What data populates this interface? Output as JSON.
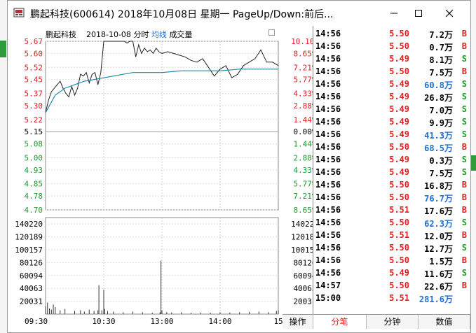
{
  "window": {
    "title": "鹏起科技(600614) 2018年10月08日 星期一 PageUp/Down:前后..."
  },
  "chart": {
    "stock_name": "鹏起科技",
    "date": "2018-10-08",
    "mode": "分时",
    "avg_label": "均线",
    "vol_label": "成交量",
    "prev_close": 5.15,
    "price_labels": [
      "5.67",
      "5.60",
      "5.52",
      "5.45",
      "5.37",
      "5.30",
      "5.22",
      "5.15",
      "5.08",
      "5.00",
      "4.93",
      "4.85",
      "4.78",
      "4.70"
    ],
    "pct_labels": [
      "10.10%",
      "8.65%",
      "7.21%",
      "5.77%",
      "4.33%",
      "2.88%",
      "1.44%",
      "0.00%",
      "1.44%",
      "2.88%",
      "4.33%",
      "5.77%",
      "7.21%",
      "8.65%"
    ],
    "volume_labels": [
      "140220",
      "120189",
      "100157",
      "80126",
      "60094",
      "40063",
      "20031"
    ],
    "time_labels": [
      "09:30",
      "10:30",
      "13:00",
      "14:00",
      "15:00"
    ],
    "colors": {
      "up": "#e32020",
      "down": "#199d2a",
      "flat": "#000000",
      "avg": "#1f6fd1"
    }
  },
  "chart_data": {
    "type": "line",
    "title": "",
    "x_unit": "trading minute index (0-240)",
    "ylim": [
      4.7,
      5.67
    ],
    "series": [
      {
        "name": "",
        "x": [
          0,
          3,
          6,
          9,
          12,
          15,
          18,
          21,
          24,
          27,
          30,
          33,
          36,
          39,
          42,
          45,
          48,
          51,
          54,
          57,
          60,
          63,
          66,
          69,
          72,
          75,
          78,
          81,
          84,
          87,
          90,
          93,
          96,
          99,
          102,
          105,
          108,
          111,
          114,
          117,
          120,
          126,
          132,
          138,
          144,
          150,
          156,
          162,
          168,
          174,
          180,
          186,
          192,
          198,
          204,
          210,
          216,
          222,
          228,
          234,
          240
        ],
        "y": [
          5.26,
          5.33,
          5.38,
          5.4,
          5.42,
          5.44,
          5.4,
          5.37,
          5.35,
          5.41,
          5.36,
          5.4,
          5.48,
          5.47,
          5.49,
          5.43,
          5.48,
          5.49,
          5.42,
          5.49,
          5.67,
          5.67,
          5.67,
          5.67,
          5.67,
          5.67,
          5.67,
          5.67,
          5.66,
          5.67,
          5.67,
          5.58,
          5.65,
          5.6,
          5.63,
          5.61,
          5.62,
          5.6,
          5.63,
          5.61,
          5.6,
          5.61,
          5.6,
          5.59,
          5.58,
          5.56,
          5.55,
          5.57,
          5.52,
          5.47,
          5.51,
          5.53,
          5.46,
          5.48,
          5.53,
          5.55,
          5.57,
          5.62,
          5.55,
          5.55,
          5.53
        ]
      },
      {
        "name": "均线",
        "x": [
          0,
          10,
          20,
          30,
          40,
          50,
          60,
          70,
          80,
          90,
          100,
          120,
          140,
          160,
          180,
          200,
          220,
          240
        ],
        "y": [
          5.26,
          5.36,
          5.4,
          5.42,
          5.44,
          5.45,
          5.46,
          5.47,
          5.48,
          5.49,
          5.49,
          5.49,
          5.5,
          5.5,
          5.5,
          5.51,
          5.51,
          5.51
        ]
      }
    ],
    "volume_series": {
      "name": "成交量",
      "x": [
        0,
        2,
        4,
        6,
        8,
        10,
        15,
        20,
        30,
        36,
        40,
        45,
        50,
        54,
        55,
        58,
        60,
        61,
        64,
        70,
        80,
        90,
        100,
        110,
        118,
        119,
        120,
        125,
        130,
        140,
        150,
        160,
        170,
        180,
        190,
        200,
        210,
        220,
        230,
        238,
        240
      ],
      "y": [
        12000,
        18000,
        9000,
        7000,
        15000,
        11000,
        6000,
        8000,
        5000,
        6000,
        4000,
        7000,
        5000,
        6000,
        45000,
        6000,
        38000,
        8000,
        5000,
        4000,
        3000,
        4000,
        3000,
        2000,
        3000,
        83000,
        6000,
        3000,
        2500,
        3000,
        2000,
        2500,
        2000,
        3000,
        2500,
        3000,
        3500,
        4000,
        3000,
        5000,
        6000
      ]
    }
  },
  "ticks": [
    {
      "time": "14:56",
      "price": "5.50",
      "vol": "7.2万",
      "dir": "B",
      "pc": "red",
      "vc": "black",
      "dc": "red"
    },
    {
      "time": "14:56",
      "price": "5.50",
      "vol": "0.7万",
      "dir": "B",
      "pc": "red",
      "vc": "black",
      "dc": "red"
    },
    {
      "time": "14:56",
      "price": "5.49",
      "vol": "8.1万",
      "dir": "S",
      "pc": "red",
      "vc": "black",
      "dc": "green"
    },
    {
      "time": "14:56",
      "price": "5.50",
      "vol": "7.5万",
      "dir": "B",
      "pc": "red",
      "vc": "black",
      "dc": "red"
    },
    {
      "time": "14:56",
      "price": "5.49",
      "vol": "60.8万",
      "dir": "S",
      "pc": "red",
      "vc": "blue",
      "dc": "green"
    },
    {
      "time": "14:56",
      "price": "5.49",
      "vol": "26.8万",
      "dir": "S",
      "pc": "red",
      "vc": "black",
      "dc": "green"
    },
    {
      "time": "14:56",
      "price": "5.49",
      "vol": "7.0万",
      "dir": "S",
      "pc": "red",
      "vc": "black",
      "dc": "green"
    },
    {
      "time": "14:56",
      "price": "5.49",
      "vol": "9.9万",
      "dir": "S",
      "pc": "red",
      "vc": "black",
      "dc": "green"
    },
    {
      "time": "14:56",
      "price": "5.49",
      "vol": "41.3万",
      "dir": "S",
      "pc": "red",
      "vc": "blue",
      "dc": "green"
    },
    {
      "time": "14:56",
      "price": "5.50",
      "vol": "68.5万",
      "dir": "B",
      "pc": "red",
      "vc": "blue",
      "dc": "red"
    },
    {
      "time": "14:56",
      "price": "5.49",
      "vol": "0.3万",
      "dir": "S",
      "pc": "red",
      "vc": "black",
      "dc": "green"
    },
    {
      "time": "14:56",
      "price": "5.49",
      "vol": "7.5万",
      "dir": "S",
      "pc": "red",
      "vc": "black",
      "dc": "green"
    },
    {
      "time": "14:56",
      "price": "5.50",
      "vol": "16.8万",
      "dir": "B",
      "pc": "red",
      "vc": "black",
      "dc": "red"
    },
    {
      "time": "14:56",
      "price": "5.50",
      "vol": "76.7万",
      "dir": "B",
      "pc": "red",
      "vc": "blue",
      "dc": "red"
    },
    {
      "time": "14:56",
      "price": "5.51",
      "vol": "17.6万",
      "dir": "B",
      "pc": "red",
      "vc": "black",
      "dc": "red"
    },
    {
      "time": "14:56",
      "price": "5.50",
      "vol": "62.3万",
      "dir": "S",
      "pc": "red",
      "vc": "blue",
      "dc": "green"
    },
    {
      "time": "14:56",
      "price": "5.51",
      "vol": "12.0万",
      "dir": "B",
      "pc": "red",
      "vc": "black",
      "dc": "red"
    },
    {
      "time": "14:56",
      "price": "5.50",
      "vol": "12.7万",
      "dir": "S",
      "pc": "red",
      "vc": "black",
      "dc": "green"
    },
    {
      "time": "14:56",
      "price": "5.50",
      "vol": "1.5万",
      "dir": "B",
      "pc": "red",
      "vc": "black",
      "dc": "red"
    },
    {
      "time": "14:56",
      "price": "5.49",
      "vol": "11.6万",
      "dir": "S",
      "pc": "red",
      "vc": "black",
      "dc": "green"
    },
    {
      "time": "14:57",
      "price": "5.50",
      "vol": "22.6万",
      "dir": "B",
      "pc": "red",
      "vc": "black",
      "dc": "red"
    },
    {
      "time": "15:00",
      "price": "5.51",
      "vol": "281.6万",
      "dir": "",
      "pc": "red",
      "vc": "blue",
      "dc": "red"
    }
  ],
  "tabs": [
    "操作",
    "分笔",
    "分钟",
    "数值"
  ],
  "active_tab": 1
}
